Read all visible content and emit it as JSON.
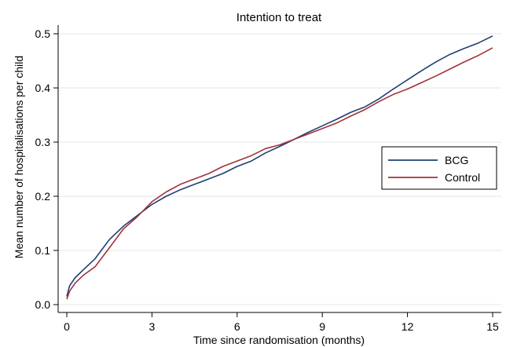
{
  "chart_data": {
    "type": "line",
    "title": "Intention to treat",
    "xlabel": "Time since randomisation (months)",
    "ylabel": "Mean number of hospitalisations per child",
    "xlim": [
      0,
      15
    ],
    "ylim": [
      0,
      0.5
    ],
    "xticks": [
      0,
      3,
      6,
      9,
      12,
      15
    ],
    "yticks": [
      0.0,
      0.1,
      0.2,
      0.3,
      0.4,
      0.5
    ],
    "ytick_labels": [
      "0.0",
      "0.1",
      "0.2",
      "0.3",
      "0.4",
      "0.5"
    ],
    "grid": true,
    "legend_position": "right",
    "series": [
      {
        "name": "BCG",
        "color": "#1f3f73",
        "points": [
          [
            0,
            0.015
          ],
          [
            0.1,
            0.035
          ],
          [
            0.3,
            0.05
          ],
          [
            0.6,
            0.065
          ],
          [
            1,
            0.085
          ],
          [
            1.5,
            0.12
          ],
          [
            2,
            0.145
          ],
          [
            2.5,
            0.165
          ],
          [
            3,
            0.185
          ],
          [
            3.5,
            0.2
          ],
          [
            4,
            0.212
          ],
          [
            4.5,
            0.222
          ],
          [
            5,
            0.232
          ],
          [
            5.5,
            0.242
          ],
          [
            6,
            0.255
          ],
          [
            6.5,
            0.265
          ],
          [
            7,
            0.28
          ],
          [
            7.5,
            0.292
          ],
          [
            8,
            0.305
          ],
          [
            8.5,
            0.318
          ],
          [
            9,
            0.33
          ],
          [
            9.5,
            0.342
          ],
          [
            10,
            0.355
          ],
          [
            10.5,
            0.365
          ],
          [
            11,
            0.38
          ],
          [
            11.5,
            0.398
          ],
          [
            12,
            0.415
          ],
          [
            12.5,
            0.432
          ],
          [
            13,
            0.448
          ],
          [
            13.5,
            0.462
          ],
          [
            14,
            0.473
          ],
          [
            14.5,
            0.483
          ],
          [
            15,
            0.496
          ]
        ]
      },
      {
        "name": "Control",
        "color": "#a33238",
        "points": [
          [
            0,
            0.01
          ],
          [
            0.1,
            0.025
          ],
          [
            0.3,
            0.04
          ],
          [
            0.6,
            0.055
          ],
          [
            1,
            0.07
          ],
          [
            1.5,
            0.105
          ],
          [
            2,
            0.14
          ],
          [
            2.5,
            0.163
          ],
          [
            3,
            0.19
          ],
          [
            3.5,
            0.208
          ],
          [
            4,
            0.222
          ],
          [
            4.5,
            0.232
          ],
          [
            5,
            0.242
          ],
          [
            5.5,
            0.255
          ],
          [
            6,
            0.265
          ],
          [
            6.5,
            0.275
          ],
          [
            7,
            0.288
          ],
          [
            7.5,
            0.295
          ],
          [
            8,
            0.305
          ],
          [
            8.5,
            0.315
          ],
          [
            9,
            0.325
          ],
          [
            9.5,
            0.335
          ],
          [
            10,
            0.348
          ],
          [
            10.5,
            0.36
          ],
          [
            11,
            0.375
          ],
          [
            11.5,
            0.388
          ],
          [
            12,
            0.398
          ],
          [
            12.5,
            0.41
          ],
          [
            13,
            0.422
          ],
          [
            13.5,
            0.435
          ],
          [
            14,
            0.448
          ],
          [
            14.5,
            0.46
          ],
          [
            15,
            0.474
          ]
        ]
      }
    ]
  }
}
